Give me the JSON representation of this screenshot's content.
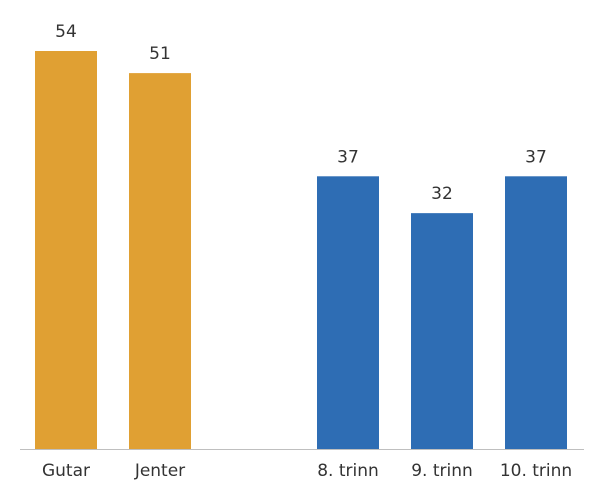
{
  "chart_data": {
    "type": "bar",
    "title": "",
    "xlabel": "",
    "ylabel": "",
    "ylim": [
      0,
      54
    ],
    "grid": false,
    "legend": "none",
    "categories": [
      "Gutar",
      "Jenter",
      "",
      "8. trinn",
      "9. trinn",
      "10. trinn"
    ],
    "values": [
      54,
      51,
      null,
      37,
      32,
      37
    ],
    "bar_colors": [
      "#E0A033",
      "#E0A033",
      null,
      "#2E6DB4",
      "#2E6DB4",
      "#2E6DB4"
    ],
    "axis_color": "#bfbfbf"
  }
}
